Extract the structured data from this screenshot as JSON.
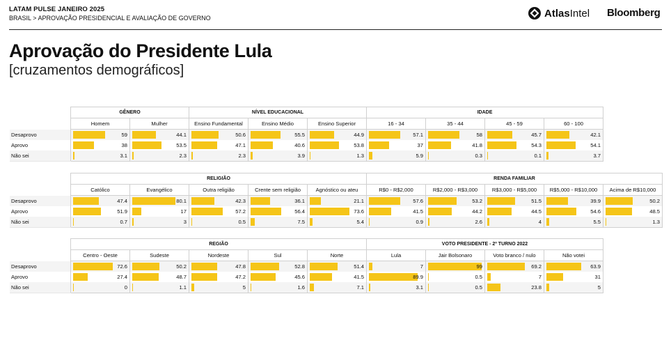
{
  "header": {
    "line1": "LATAM PULSE JANEIRO 2025",
    "line2": "BRASIL > APROVAÇÃO PRESIDENCIAL E AVALIAÇÃO DE GOVERNO",
    "logo_atlas_bold": "Atlas",
    "logo_atlas_rest": "Intel",
    "logo_bloomberg": "Bloomberg"
  },
  "title": "Aprovação do Presidente Lula",
  "subtitle": "[cruzamentos demográficos]",
  "colors": {
    "bar": "#f5c518",
    "rule": "#222222",
    "grid": "#d0d0d0",
    "stripe": "#f4f4f4"
  },
  "chart_data": [
    {
      "type": "table",
      "row_labels": [
        "Desaprovo",
        "Aprovo",
        "Não sei"
      ],
      "groups": [
        {
          "name": "GÊNERO",
          "columns": [
            {
              "name": "Homem",
              "values": [
                59,
                38,
                3.1
              ]
            },
            {
              "name": "Mulher",
              "values": [
                44.1,
                53.5,
                2.3
              ]
            }
          ]
        },
        {
          "name": "NÍVEL EDUCACIONAL",
          "columns": [
            {
              "name": "Ensino Fundamental",
              "values": [
                50.6,
                47.1,
                2.3
              ]
            },
            {
              "name": "Ensino Médio",
              "values": [
                55.5,
                40.6,
                3.9
              ]
            },
            {
              "name": "Ensino Superior",
              "values": [
                44.9,
                53.8,
                1.3
              ]
            }
          ]
        },
        {
          "name": "IDADE",
          "columns": [
            {
              "name": "16 - 34",
              "values": [
                57.1,
                37,
                5.9
              ]
            },
            {
              "name": "35 - 44",
              "values": [
                58,
                41.8,
                0.3
              ]
            },
            {
              "name": "45 - 59",
              "values": [
                45.7,
                54.3,
                0.1
              ]
            },
            {
              "name": "60 - 100",
              "values": [
                42.1,
                54.1,
                3.7
              ]
            }
          ]
        }
      ]
    },
    {
      "type": "table",
      "row_labels": [
        "Desaprovo",
        "Aprovo",
        "Não sei"
      ],
      "groups": [
        {
          "name": "RELIGIÃO",
          "columns": [
            {
              "name": "Católico",
              "values": [
                47.4,
                51.9,
                0.7
              ]
            },
            {
              "name": "Evangélico",
              "values": [
                80.1,
                17,
                3
              ]
            },
            {
              "name": "Outra religião",
              "values": [
                42.3,
                57.2,
                0.5
              ]
            },
            {
              "name": "Crente sem religião",
              "values": [
                36.1,
                56.4,
                7.5
              ]
            },
            {
              "name": "Agnóstico ou ateu",
              "values": [
                21.1,
                73.6,
                5.4
              ]
            }
          ]
        },
        {
          "name": "RENDA FAMILIAR",
          "columns": [
            {
              "name": "R$0 - R$2,000",
              "values": [
                57.6,
                41.5,
                0.9
              ]
            },
            {
              "name": "R$2,000 - R$3,000",
              "values": [
                53.2,
                44.2,
                2.6
              ]
            },
            {
              "name": "R$3,000 - R$5,000",
              "values": [
                51.5,
                44.5,
                4
              ]
            },
            {
              "name": "R$5,000 - R$10,000",
              "values": [
                39.9,
                54.6,
                5.5
              ]
            },
            {
              "name": "Acima de R$10,000",
              "values": [
                50.2,
                48.5,
                1.3
              ]
            }
          ]
        }
      ]
    },
    {
      "type": "table",
      "row_labels": [
        "Desaprovo",
        "Aprovo",
        "Não sei"
      ],
      "groups": [
        {
          "name": "REGIÃO",
          "columns": [
            {
              "name": "Centro - Oeste",
              "values": [
                72.6,
                27.4,
                0
              ]
            },
            {
              "name": "Sudeste",
              "values": [
                50.2,
                48.7,
                1.1
              ]
            },
            {
              "name": "Nordeste",
              "values": [
                47.8,
                47.2,
                5
              ]
            },
            {
              "name": "Sul",
              "values": [
                52.8,
                45.6,
                1.6
              ]
            },
            {
              "name": "Norte",
              "values": [
                51.4,
                41.5,
                7.1
              ]
            }
          ]
        },
        {
          "name": "VOTO PRESIDENTE - 2º TURNO 2022",
          "columns": [
            {
              "name": "Lula",
              "values": [
                7,
                89.9,
                3.1
              ]
            },
            {
              "name": "Jair Bolsonaro",
              "values": [
                99,
                0.5,
                0.5
              ]
            },
            {
              "name": "Voto branco / nulo",
              "values": [
                69.2,
                7,
                23.8
              ]
            },
            {
              "name": "Não votei",
              "values": [
                63.9,
                31,
                5
              ]
            }
          ]
        }
      ]
    }
  ]
}
